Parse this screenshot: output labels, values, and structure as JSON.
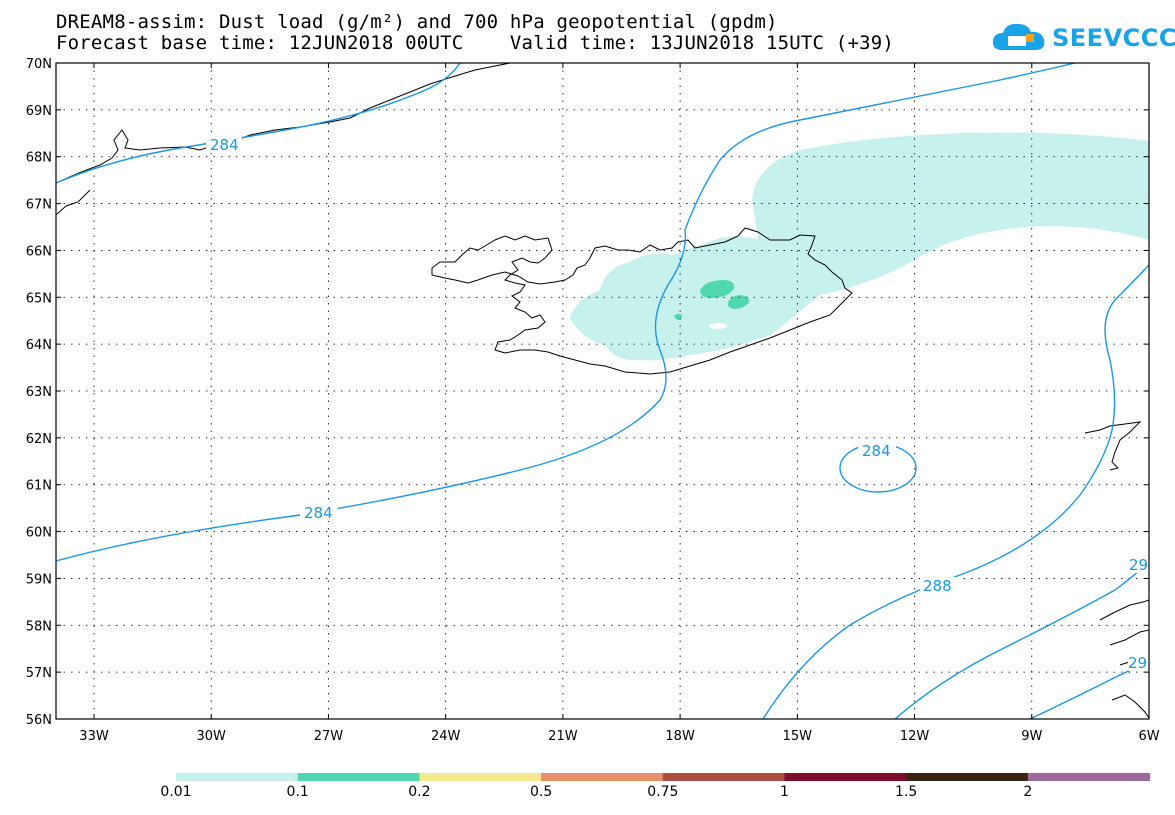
{
  "title": {
    "line1": "DREAM8-assim: Dust load (g/m²) and 700 hPa geopotential (gpdm)",
    "line2": "Forecast base time: 12JUN2018 00UTC    Valid time: 13JUN2018 15UTC (+39)"
  },
  "logo": {
    "text": "SEEVCCC",
    "icon": "cloud-icon"
  },
  "map": {
    "lat_labels": [
      "70N",
      "69N",
      "68N",
      "67N",
      "66N",
      "65N",
      "64N",
      "63N",
      "62N",
      "61N",
      "60N",
      "59N",
      "58N",
      "57N",
      "56N"
    ],
    "lon_labels": [
      "33W",
      "30W",
      "27W",
      "24W",
      "21W",
      "18W",
      "15W",
      "12W",
      "9W",
      "6W"
    ],
    "contour_labels": [
      "284",
      "284",
      "284",
      "288",
      "29",
      "29"
    ],
    "contour_color": "#1b97e2",
    "dust_colors": {
      "light": "#c6f1ec",
      "medium": "#4fd8b0"
    }
  },
  "colorbar": {
    "colors": [
      "#c6f1ec",
      "#4fd8b0",
      "#f5e88d",
      "#e8906a",
      "#ad4f45",
      "#7d0e2e",
      "#3c2414",
      "#9b6a9a"
    ],
    "labels": [
      "0.01",
      "0.1",
      "0.2",
      "0.5",
      "0.75",
      "1",
      "1.5",
      "2"
    ]
  }
}
